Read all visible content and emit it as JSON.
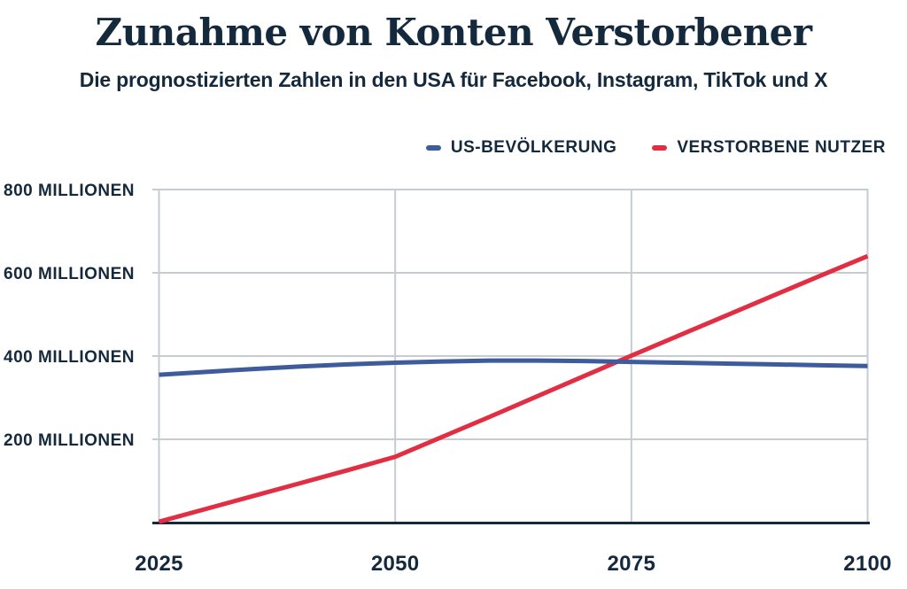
{
  "header": {
    "title": "Zunahme von Konten Verstorbener",
    "subtitle": "Die prognostizierten Zahlen in den USA für Facebook, Instagram, TikTok und X"
  },
  "colors": {
    "text_navy": "#15293d",
    "grid": "#c7ccd1",
    "axis": "#15293d",
    "us_population_line": "#3e5c9c",
    "deceased_users_line": "#e12e43",
    "background": "#ffffff"
  },
  "legend": {
    "items": [
      {
        "id": "us-population",
        "label": "US-BEVÖLKERUNG",
        "color": "#3e5c9c"
      },
      {
        "id": "deceased-users",
        "label": "VERSTORBENE NUTZER",
        "color": "#e12e43"
      }
    ]
  },
  "chart_data": {
    "type": "line",
    "title": "Zunahme von Konten Verstorbener",
    "subtitle": "Die prognostizierten Zahlen in den USA für Facebook, Instagram, TikTok und X",
    "unit": "Millionen",
    "grid": true,
    "legend_position": "top-right",
    "xlim": [
      2025,
      2100
    ],
    "ylim": [
      0,
      800
    ],
    "x": [
      2025,
      2030,
      2035,
      2040,
      2045,
      2050,
      2055,
      2060,
      2065,
      2070,
      2075,
      2080,
      2085,
      2090,
      2095,
      2100
    ],
    "series": [
      {
        "id": "us-population",
        "name": "US-Bevölkerung",
        "color": "#3e5c9c",
        "values": [
          355,
          362,
          369,
          375,
          380,
          384,
          387,
          389,
          389,
          388,
          386,
          384,
          382,
          380,
          378,
          376
        ]
      },
      {
        "id": "deceased-users",
        "name": "Verstorbene Nutzer",
        "color": "#e12e43",
        "values": [
          2,
          33,
          64,
          95,
          126,
          158,
          206,
          254,
          303,
          352,
          401,
          449,
          497,
          545,
          593,
          640
        ]
      }
    ],
    "x_ticks": [
      {
        "value": 2025,
        "label": "2025"
      },
      {
        "value": 2050,
        "label": "2050"
      },
      {
        "value": 2075,
        "label": "2075"
      },
      {
        "value": 2100,
        "label": "2100"
      }
    ],
    "y_ticks": [
      {
        "value": 200,
        "label": "200 MILLIONEN"
      },
      {
        "value": 400,
        "label": "400 MILLIONEN"
      },
      {
        "value": 600,
        "label": "600 MILLIONEN"
      },
      {
        "value": 800,
        "label": "800 MILLIONEN"
      }
    ]
  }
}
